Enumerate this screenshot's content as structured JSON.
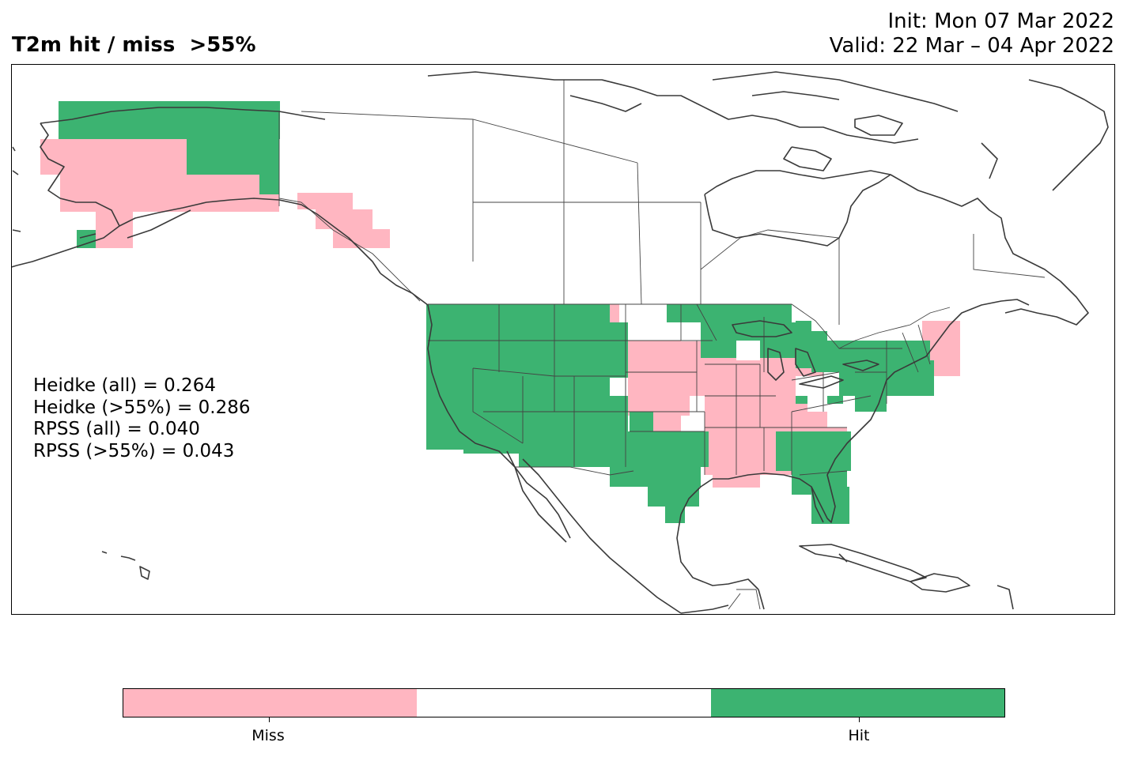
{
  "title": "T2m hit / miss  >55%",
  "init_text": "Init: Mon 07 Mar 2022",
  "valid_text": "Valid: 22 Mar – 04 Apr 2022",
  "colors": {
    "miss": "#ffb6c1",
    "neutral": "#ffffff",
    "hit": "#3cb371",
    "coast": "#3a3a3a"
  },
  "stats": {
    "heidke_all": "Heidke (all) = 0.264",
    "heidke_55": "Heidke (>55%) = 0.286",
    "rpss_all": "RPSS (all) = 0.040",
    "rpss_55": "RPSS (>55%) = 0.043"
  },
  "legend": {
    "miss_label": "Miss",
    "hit_label": "Hit"
  }
}
